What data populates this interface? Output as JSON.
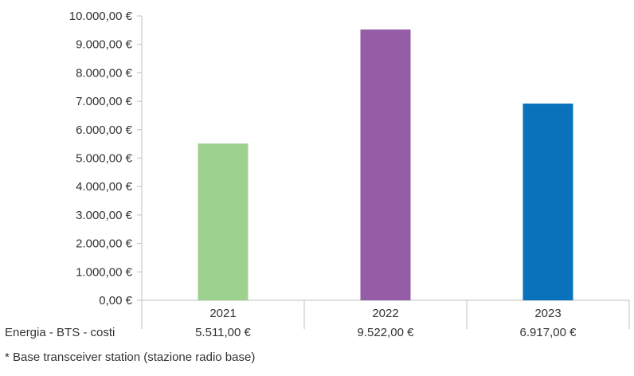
{
  "chart_data": {
    "type": "bar",
    "categories": [
      "2021",
      "2022",
      "2023"
    ],
    "series": [
      {
        "name": "Energia - BTS - costi",
        "values": [
          5511,
          9522,
          6917
        ]
      }
    ],
    "value_labels": [
      "5.511,00 €",
      "9.522,00 €",
      "6.917,00 €"
    ],
    "bar_colors": [
      "#9dd18f",
      "#955da5",
      "#0a72bb"
    ],
    "ylim": [
      0,
      10000
    ],
    "yticks": [
      0,
      1000,
      2000,
      3000,
      4000,
      5000,
      6000,
      7000,
      8000,
      9000,
      10000
    ],
    "ytick_labels": [
      "0,00 €",
      "1.000,00 €",
      "2.000,00 €",
      "3.000,00 €",
      "4.000,00 €",
      "5.000,00 €",
      "6.000,00 €",
      "7.000,00 €",
      "8.000,00 €",
      "9.000,00 €",
      "10.000,00 €"
    ],
    "grid": false,
    "title": "",
    "xlabel": "",
    "ylabel": ""
  },
  "footnote": "* Base transceiver station (stazione radio base)"
}
